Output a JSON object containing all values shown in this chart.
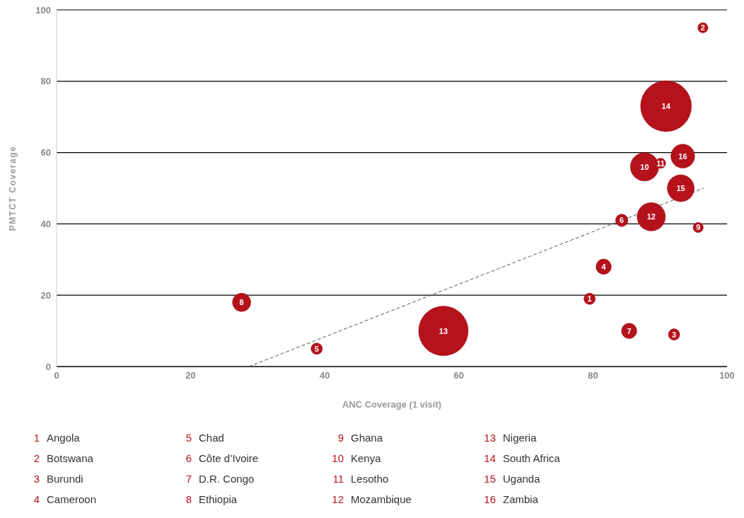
{
  "chart_data": {
    "type": "bubble",
    "xlabel": "ANC Coverage (1 visit)",
    "ylabel": "PMTCT Coverage",
    "xlim": [
      0,
      100
    ],
    "xticks": [
      0,
      20,
      40,
      60,
      80,
      100
    ],
    "ylim": [
      0,
      100
    ],
    "yticks": [
      0,
      20,
      40,
      60,
      80,
      100
    ],
    "grid": "y",
    "legend": false,
    "series": [
      {
        "color": "#b5121b",
        "x": [
          79.5,
          96.4,
          92.1,
          81.6,
          38.8,
          84.3,
          85.4,
          27.6,
          95.7,
          87.7,
          90.1,
          88.7,
          57.7,
          90.9,
          93.1,
          93.4
        ],
        "values": [
          19,
          95,
          9,
          28,
          5,
          41,
          10,
          18,
          39,
          56,
          57,
          42,
          10,
          73,
          50,
          59
        ],
        "sizes": [
          0.05,
          0.04,
          0.05,
          0.09,
          0.05,
          0.06,
          0.09,
          0.13,
          0.04,
          0.31,
          0.04,
          0.31,
          0.95,
          1,
          0.28,
          0.22
        ]
      },
      {
        "type": "line",
        "color": "#555555",
        "line_style": "dashed",
        "x": [
          28.7,
          96.5
        ],
        "values": [
          0,
          50
        ]
      }
    ],
    "annotations": [
      {
        "text": "1",
        "x": 79.5,
        "y": 19
      },
      {
        "text": "2",
        "x": 96.4,
        "y": 95
      },
      {
        "text": "3",
        "x": 92.1,
        "y": 9
      },
      {
        "text": "4",
        "x": 81.6,
        "y": 28
      },
      {
        "text": "5",
        "x": 38.8,
        "y": 5
      },
      {
        "text": "6",
        "x": 84.3,
        "y": 41
      },
      {
        "text": "7",
        "x": 85.4,
        "y": 10
      },
      {
        "text": "8",
        "x": 27.6,
        "y": 18
      },
      {
        "text": "9",
        "x": 95.7,
        "y": 39
      },
      {
        "text": "10",
        "x": 87.7,
        "y": 56
      },
      {
        "text": "11",
        "x": 90.1,
        "y": 57
      },
      {
        "text": "12",
        "x": 88.7,
        "y": 42
      },
      {
        "text": "13",
        "x": 57.7,
        "y": 10
      },
      {
        "text": "14",
        "x": 90.9,
        "y": 73
      },
      {
        "text": "15",
        "x": 93.1,
        "y": 50
      },
      {
        "text": "16",
        "x": 93.4,
        "y": 59
      },
      "1 Angola",
      "2 Botswana",
      "3 Burundi",
      "4 Cameroon",
      "5 Chad",
      "6 Côte d’Ivoire",
      "7 D.R. Congo",
      "8 Ethiopia",
      "9 Ghana",
      "10 Kenya",
      "11 Lesotho",
      "12 Mozambique",
      "13 Nigeria",
      "14 South Africa",
      "15 Uganda",
      "16 Zambia"
    ]
  }
}
